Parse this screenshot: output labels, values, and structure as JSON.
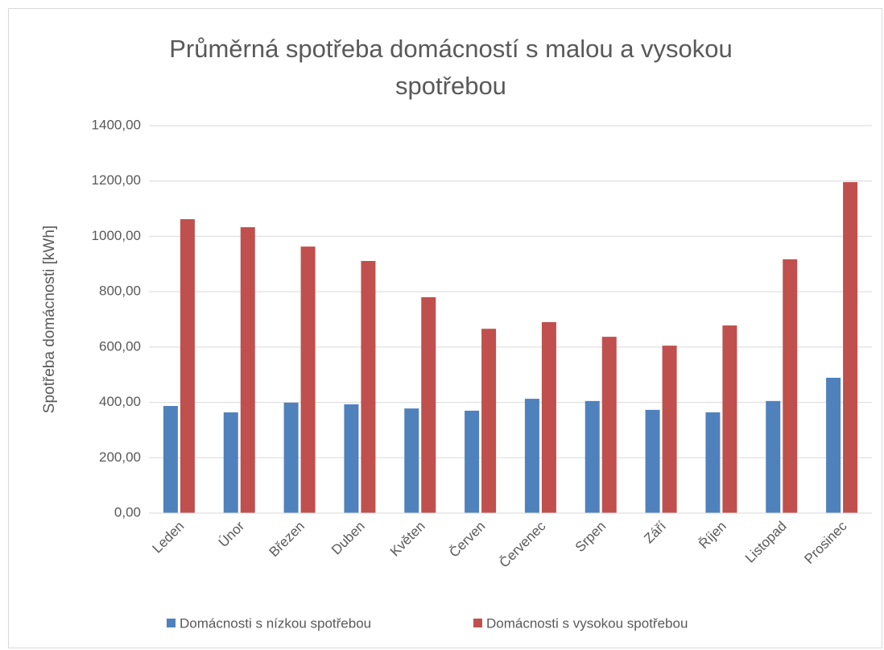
{
  "chart_data": {
    "type": "bar",
    "title": "Průměrná spotřeba domácností s malou a vysokou spotřebou",
    "y_label": "Spotřeba domácnosti [kWh]",
    "categories": [
      "Leden",
      "Únor",
      "Březen",
      "Duben",
      "Květen",
      "Červen",
      "Červenec",
      "Srpen",
      "Září",
      "Říjen",
      "Listopad",
      "Prosinec"
    ],
    "series": [
      {
        "name": "Domácnosti s nízkou spotřebou",
        "color": "#4f81bd",
        "values": [
          387,
          364,
          399,
          393,
          378,
          370,
          413,
          405,
          373,
          364,
          405,
          489
        ]
      },
      {
        "name": "Domácnosti s vysokou spotřebou",
        "color": "#c0504d",
        "values": [
          1062,
          1033,
          963,
          911,
          780,
          666,
          690,
          637,
          605,
          678,
          917,
          1196
        ]
      }
    ],
    "ylim": [
      0,
      1400
    ],
    "yticks": [
      {
        "value": 0,
        "label": "0,00"
      },
      {
        "value": 200,
        "label": "200,00"
      },
      {
        "value": 400,
        "label": "400,00"
      },
      {
        "value": 600,
        "label": "600,00"
      },
      {
        "value": 800,
        "label": "800,00"
      },
      {
        "value": 1000,
        "label": "1000,00"
      },
      {
        "value": 1200,
        "label": "1200,00"
      },
      {
        "value": 1400,
        "label": "1400,00"
      }
    ],
    "grid": true,
    "legend": "bottom"
  }
}
